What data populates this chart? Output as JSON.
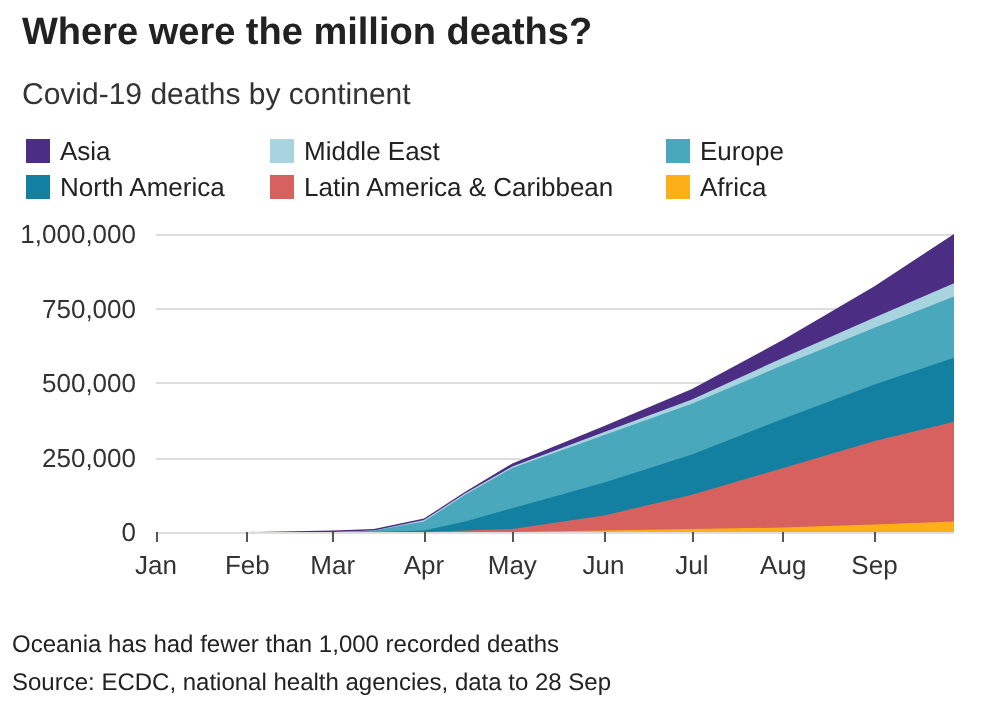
{
  "chart_data": {
    "type": "area",
    "title": "Where were the million deaths?",
    "subtitle": "Covid-19 deaths by continent",
    "stacked": true,
    "x": [
      "--01-01",
      "--02-01",
      "--03-01",
      "--03-15",
      "--04-01",
      "--04-15",
      "--05-01",
      "--06-01",
      "--07-01",
      "--08-01",
      "--09-01",
      "--09-28"
    ],
    "series": [
      {
        "name": "Africa",
        "color": "#fdaf17",
        "values": [
          0,
          0,
          0,
          0,
          0,
          0,
          0,
          5000,
          10000,
          15000,
          25000,
          35000
        ]
      },
      {
        "name": "Latin America & Caribbean",
        "color": "#d6615e",
        "values": [
          0,
          0,
          0,
          0,
          0,
          5000,
          10000,
          50000,
          115000,
          200000,
          280000,
          335000
        ]
      },
      {
        "name": "North America",
        "color": "#1380a1",
        "values": [
          0,
          0,
          0,
          0,
          5000,
          30000,
          70000,
          110000,
          135000,
          165000,
          190000,
          215000
        ]
      },
      {
        "name": "Europe",
        "color": "#4aa8bc",
        "values": [
          0,
          0,
          0,
          5000,
          30000,
          90000,
          135000,
          160000,
          170000,
          180000,
          190000,
          205000
        ]
      },
      {
        "name": "Middle East",
        "color": "#a8d4e0",
        "values": [
          0,
          0,
          0,
          0,
          5000,
          5000,
          5000,
          10000,
          15000,
          25000,
          35000,
          45000
        ]
      },
      {
        "name": "Asia",
        "color": "#4b2e83",
        "values": [
          0,
          0,
          5000,
          5000,
          5000,
          5000,
          10000,
          20000,
          35000,
          60000,
          105000,
          165000
        ]
      }
    ],
    "xlim": [
      "--01-01",
      "--09-28"
    ],
    "xticks": [
      {
        "value": "--01-01",
        "label": "Jan"
      },
      {
        "value": "--02-01",
        "label": "Feb"
      },
      {
        "value": "--03-01",
        "label": "Mar"
      },
      {
        "value": "--04-01",
        "label": "Apr"
      },
      {
        "value": "--05-01",
        "label": "May"
      },
      {
        "value": "--06-01",
        "label": "Jun"
      },
      {
        "value": "--07-01",
        "label": "Jul"
      },
      {
        "value": "--08-01",
        "label": "Aug"
      },
      {
        "value": "--09-01",
        "label": "Sep"
      }
    ],
    "ylim": [
      0,
      1000000
    ],
    "yticks": [
      {
        "value": 0,
        "label": "0"
      },
      {
        "value": 250000,
        "label": "250,000"
      },
      {
        "value": 500000,
        "label": "500,000"
      },
      {
        "value": 750000,
        "label": "750,000"
      },
      {
        "value": 1000000,
        "label": "1,000,000"
      }
    ],
    "grid": "y",
    "legend": "top left",
    "annotations": [
      "Oceania has had fewer than 1,000 recorded deaths",
      "Source: ECDC, national health agencies, data to 28 Sep"
    ]
  }
}
